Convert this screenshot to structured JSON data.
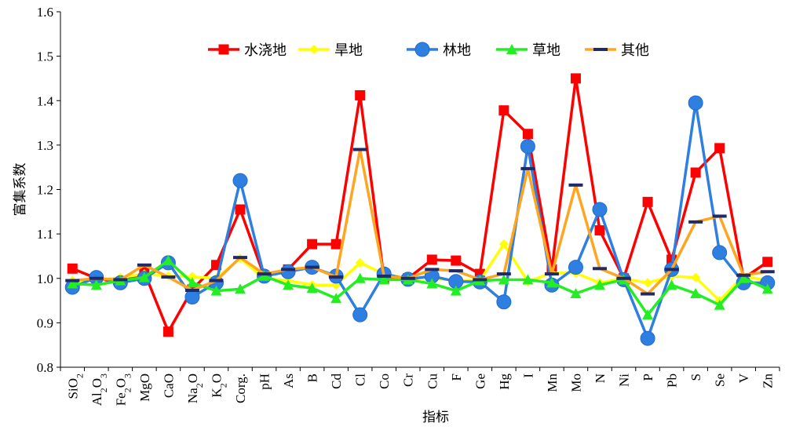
{
  "chart_data": {
    "type": "line",
    "xlabel": "指标",
    "ylabel": "富集系数",
    "ylim": [
      0.8,
      1.6
    ],
    "yticks": [
      "0.8",
      "0.9",
      "1.0",
      "1.1",
      "1.2",
      "1.3",
      "1.4",
      "1.5",
      "1.6"
    ],
    "legend_position": "top",
    "grid": false,
    "categories": [
      {
        "base": "SiO",
        "sub": "2",
        "rest": ""
      },
      {
        "base": "Al",
        "sub": "2",
        "rest": "O",
        "sub2": "3"
      },
      {
        "base": "Fe",
        "sub": "2",
        "rest": "O",
        "sub2": "3"
      },
      {
        "base": "MgO"
      },
      {
        "base": "CaO"
      },
      {
        "base": "Na",
        "sub": "2",
        "rest": "O"
      },
      {
        "base": "K",
        "sub": "2",
        "rest": "O"
      },
      {
        "base": "Corg."
      },
      {
        "base": "pH"
      },
      {
        "base": "As"
      },
      {
        "base": "B"
      },
      {
        "base": "Cd"
      },
      {
        "base": "Cl"
      },
      {
        "base": "Co"
      },
      {
        "base": "Cr"
      },
      {
        "base": "Cu"
      },
      {
        "base": "F"
      },
      {
        "base": "Ge"
      },
      {
        "base": "Hg"
      },
      {
        "base": "I"
      },
      {
        "base": "Mn"
      },
      {
        "base": "Mo"
      },
      {
        "base": "N"
      },
      {
        "base": "Ni"
      },
      {
        "base": "P"
      },
      {
        "base": "Pb"
      },
      {
        "base": "S"
      },
      {
        "base": "Se"
      },
      {
        "base": "V"
      },
      {
        "base": "Zn"
      }
    ],
    "series": [
      {
        "name": "水浇地",
        "color": "#ff0000",
        "marker": "square",
        "values": [
          1.022,
          1.0,
          0.99,
          1.014,
          0.88,
          0.975,
          1.03,
          1.155,
          1.005,
          1.02,
          1.077,
          1.077,
          1.412,
          1.0,
          1.0,
          1.042,
          1.04,
          1.01,
          1.378,
          1.325,
          1.02,
          1.45,
          1.108,
          1.0,
          1.172,
          1.042,
          1.238,
          1.293,
          1.0,
          1.037
        ]
      },
      {
        "name": "旱地",
        "color": "#ffff00",
        "marker": "diamond",
        "values": [
          0.995,
          0.995,
          1.002,
          1.01,
          1.005,
          1.004,
          1.0,
          1.045,
          1.0,
          0.995,
          0.985,
          0.985,
          1.035,
          1.01,
          1.0,
          1.0,
          0.995,
          0.995,
          1.077,
          0.993,
          1.012,
          1.012,
          0.99,
          1.0,
          0.99,
          1.005,
          1.002,
          0.95,
          1.005,
          0.995
        ]
      },
      {
        "name": "林地",
        "color": "#2f7fe0",
        "marker": "circle",
        "values": [
          0.98,
          1.002,
          0.99,
          1.0,
          1.035,
          0.958,
          0.99,
          1.22,
          1.005,
          1.015,
          1.025,
          1.005,
          0.918,
          1.01,
          0.998,
          1.005,
          0.993,
          0.992,
          0.947,
          1.297,
          0.985,
          1.025,
          1.155,
          0.997,
          0.865,
          1.02,
          1.395,
          1.058,
          0.99,
          0.99
        ]
      },
      {
        "name": "草地",
        "color": "#22ee22",
        "marker": "triangle",
        "values": [
          0.988,
          0.985,
          0.995,
          1.002,
          1.04,
          0.99,
          0.972,
          0.976,
          1.005,
          0.985,
          0.978,
          0.955,
          1.0,
          0.997,
          0.997,
          0.988,
          0.972,
          0.995,
          0.997,
          0.997,
          0.99,
          0.966,
          0.985,
          0.997,
          0.918,
          0.985,
          0.966,
          0.94,
          1.0,
          0.976
        ]
      },
      {
        "name": "其他",
        "color": "#ffa520",
        "marker": "dash",
        "values": [
          0.995,
          1.0,
          0.997,
          1.03,
          1.003,
          0.973,
          0.995,
          1.047,
          1.01,
          1.02,
          1.025,
          1.003,
          1.29,
          1.005,
          1.0,
          1.02,
          1.017,
          0.997,
          1.01,
          1.247,
          1.01,
          1.21,
          1.022,
          1.0,
          0.965,
          1.02,
          1.127,
          1.14,
          1.007,
          1.015
        ]
      }
    ]
  }
}
